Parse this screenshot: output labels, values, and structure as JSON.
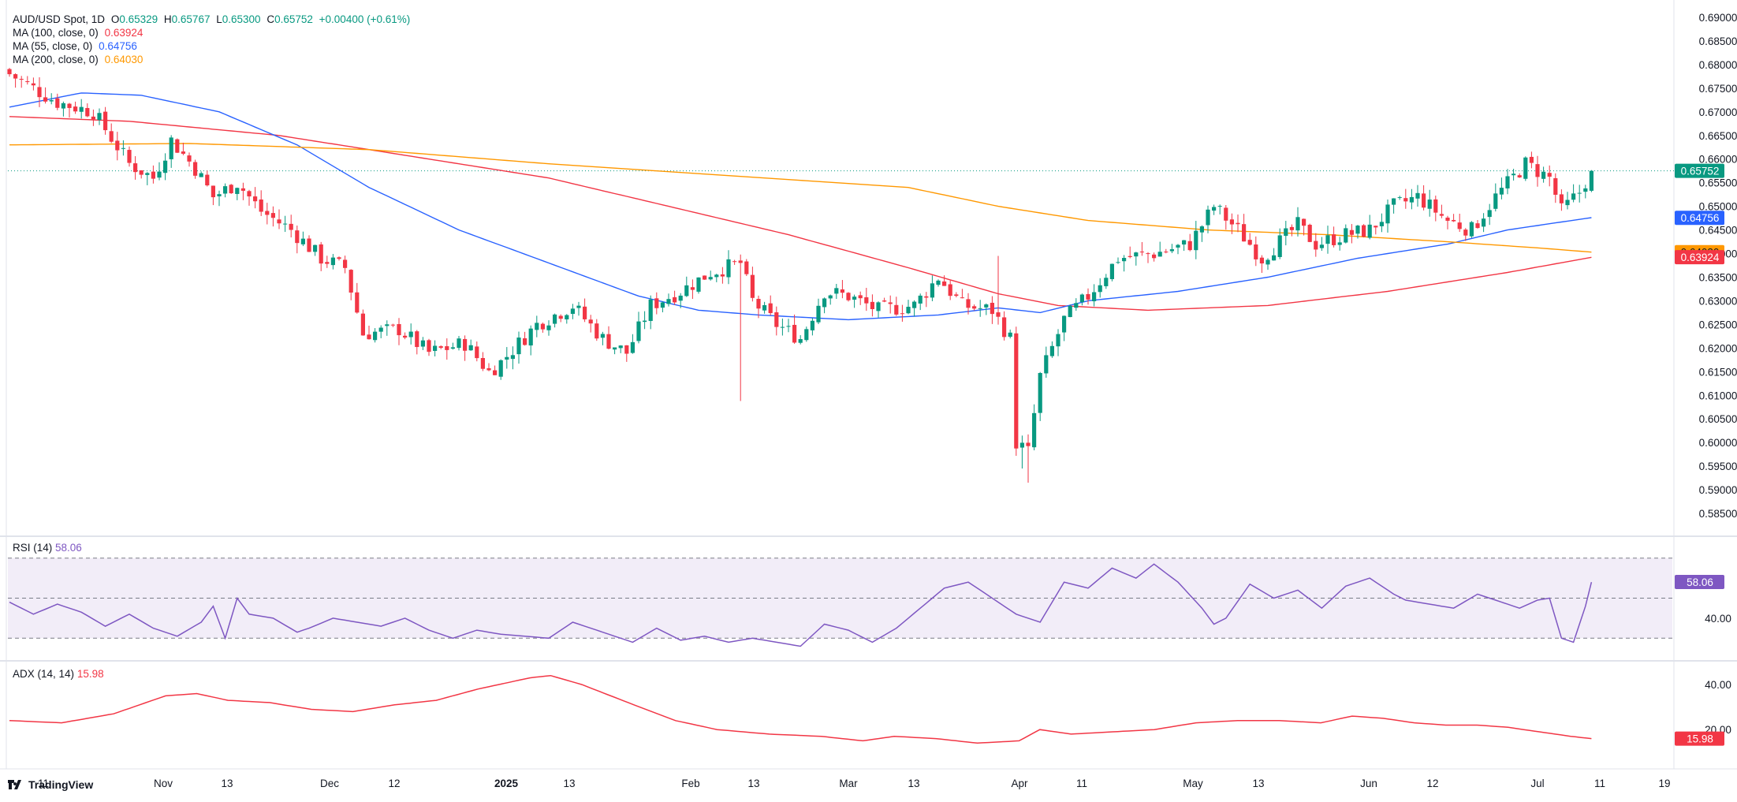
{
  "header": {
    "symbol": "AUD/USD Spot, 1D",
    "o_label": "O",
    "o_value": "0.65329",
    "h_label": "H",
    "h_value": "0.65767",
    "l_label": "L",
    "l_value": "0.65300",
    "c_label": "C",
    "c_value": "0.65752",
    "change": "+0.00400 (+0.61%)"
  },
  "indicators": {
    "ma100": {
      "label": "MA (100, close, 0)",
      "value": "0.63924",
      "color": "#f23645"
    },
    "ma55": {
      "label": "MA (55, close, 0)",
      "value": "0.64756",
      "color": "#2962ff"
    },
    "ma200": {
      "label": "MA (200, close, 0)",
      "value": "0.64030",
      "color": "#ff9800"
    },
    "rsi": {
      "label": "RSI (14)",
      "value": "58.06",
      "color": "#7e57c2"
    },
    "adx": {
      "label": "ADX (14, 14)",
      "value": "15.98",
      "color": "#f23645"
    }
  },
  "price_tag": {
    "value": "0.65752",
    "color": "#089981"
  },
  "branding": {
    "name": "TradingView"
  },
  "colors": {
    "up": "#089981",
    "down": "#f23645",
    "rsi_band": "#ede7f6"
  },
  "chart_data": [
    {
      "type": "candlestick",
      "title": "AUD/USD Spot, 1D",
      "ylim": [
        0.583,
        0.69
      ],
      "y_ticks": [
        "0.69000",
        "0.68500",
        "0.68000",
        "0.67500",
        "0.67000",
        "0.66500",
        "0.66000",
        "0.65500",
        "0.65000",
        "0.64500",
        "0.64000",
        "0.63500",
        "0.63000",
        "0.62500",
        "0.62000",
        "0.61500",
        "0.61000",
        "0.60500",
        "0.60000",
        "0.59500",
        "0.59000",
        "0.58500"
      ],
      "x_ticks": [
        "11",
        "Nov",
        "13",
        "Dec",
        "12",
        "2025",
        "13",
        "Feb",
        "13",
        "Mar",
        "13",
        "Apr",
        "11",
        "May",
        "13",
        "Jun",
        "12",
        "Jul",
        "11",
        "19"
      ],
      "x_ticks_bold": [
        "2025"
      ],
      "anchors": [
        [
          0,
          0.678
        ],
        [
          8,
          0.672
        ],
        [
          14,
          0.67
        ],
        [
          20,
          0.659
        ],
        [
          24,
          0.656
        ],
        [
          27,
          0.664
        ],
        [
          31,
          0.658
        ],
        [
          34,
          0.652
        ],
        [
          38,
          0.655
        ],
        [
          42,
          0.649
        ],
        [
          47,
          0.645
        ],
        [
          52,
          0.639
        ],
        [
          56,
          0.637
        ],
        [
          59,
          0.623
        ],
        [
          65,
          0.624
        ],
        [
          70,
          0.619
        ],
        [
          76,
          0.621
        ],
        [
          80,
          0.615
        ],
        [
          82,
          0.617
        ],
        [
          88,
          0.625
        ],
        [
          94,
          0.629
        ],
        [
          99,
          0.622
        ],
        [
          103,
          0.619
        ],
        [
          107,
          0.629
        ],
        [
          112,
          0.632
        ],
        [
          117,
          0.636
        ],
        [
          122,
          0.638
        ],
        [
          124,
          0.63
        ],
        [
          128,
          0.625
        ],
        [
          132,
          0.622
        ],
        [
          136,
          0.632
        ],
        [
          140,
          0.631
        ],
        [
          145,
          0.628
        ],
        [
          151,
          0.629
        ],
        [
          155,
          0.635
        ],
        [
          159,
          0.629
        ],
        [
          164,
          0.628
        ],
        [
          167,
          0.622
        ],
        [
          168,
          0.6
        ],
        [
          170,
          0.598
        ],
        [
          172,
          0.614
        ],
        [
          176,
          0.626
        ],
        [
          180,
          0.631
        ],
        [
          185,
          0.639
        ],
        [
          191,
          0.64
        ],
        [
          197,
          0.642
        ],
        [
          201,
          0.65
        ],
        [
          205,
          0.645
        ],
        [
          209,
          0.639
        ],
        [
          215,
          0.646
        ],
        [
          218,
          0.642
        ],
        [
          223,
          0.644
        ],
        [
          227,
          0.645
        ],
        [
          231,
          0.65
        ],
        [
          235,
          0.652
        ],
        [
          240,
          0.647
        ],
        [
          244,
          0.645
        ],
        [
          248,
          0.652
        ],
        [
          253,
          0.659
        ],
        [
          257,
          0.656
        ],
        [
          259,
          0.649
        ],
        [
          262,
          0.653
        ],
        [
          264,
          0.6575
        ]
      ],
      "series": [
        {
          "name": "MA (100, close, 0)",
          "points": [
            [
              0,
              0.669
            ],
            [
              20,
              0.668
            ],
            [
              45,
              0.665
            ],
            [
              65,
              0.661
            ],
            [
              90,
              0.656
            ],
            [
              110,
              0.65
            ],
            [
              130,
              0.644
            ],
            [
              150,
              0.637
            ],
            [
              165,
              0.6315
            ],
            [
              175,
              0.629
            ],
            [
              190,
              0.628
            ],
            [
              210,
              0.629
            ],
            [
              230,
              0.632
            ],
            [
              250,
              0.636
            ],
            [
              264,
              0.6392
            ]
          ]
        },
        {
          "name": "MA (55, close, 0)",
          "points": [
            [
              0,
              0.671
            ],
            [
              12,
              0.674
            ],
            [
              22,
              0.6735
            ],
            [
              35,
              0.67
            ],
            [
              48,
              0.663
            ],
            [
              60,
              0.654
            ],
            [
              75,
              0.645
            ],
            [
              90,
              0.638
            ],
            [
              105,
              0.631
            ],
            [
              115,
              0.628
            ],
            [
              125,
              0.627
            ],
            [
              140,
              0.626
            ],
            [
              155,
              0.627
            ],
            [
              165,
              0.6285
            ],
            [
              172,
              0.6275
            ],
            [
              180,
              0.63
            ],
            [
              195,
              0.632
            ],
            [
              210,
              0.635
            ],
            [
              225,
              0.639
            ],
            [
              240,
              0.642
            ],
            [
              250,
              0.645
            ],
            [
              258,
              0.6465
            ],
            [
              264,
              0.6476
            ]
          ]
        },
        {
          "name": "MA (200, close, 0)",
          "points": [
            [
              0,
              0.663
            ],
            [
              30,
              0.6633
            ],
            [
              60,
              0.662
            ],
            [
              90,
              0.659
            ],
            [
              120,
              0.6565
            ],
            [
              150,
              0.654
            ],
            [
              165,
              0.65
            ],
            [
              180,
              0.647
            ],
            [
              200,
              0.645
            ],
            [
              220,
              0.644
            ],
            [
              240,
              0.6425
            ],
            [
              255,
              0.6412
            ],
            [
              264,
              0.6403
            ]
          ]
        }
      ]
    },
    {
      "type": "line",
      "title": "RSI (14)",
      "ylim": [
        25,
        75
      ],
      "y_ticks": [
        "40.00"
      ],
      "bands": [
        30,
        50,
        70
      ],
      "series": [
        {
          "name": "RSI (14)",
          "points": [
            [
              0,
              48
            ],
            [
              4,
              42
            ],
            [
              8,
              47
            ],
            [
              12,
              43
            ],
            [
              16,
              36
            ],
            [
              20,
              42
            ],
            [
              24,
              35
            ],
            [
              28,
              31
            ],
            [
              32,
              38
            ],
            [
              34,
              46
            ],
            [
              36,
              30
            ],
            [
              38,
              50
            ],
            [
              40,
              42
            ],
            [
              44,
              40
            ],
            [
              48,
              33
            ],
            [
              50,
              35
            ],
            [
              54,
              40
            ],
            [
              58,
              38
            ],
            [
              62,
              36
            ],
            [
              66,
              40
            ],
            [
              70,
              34
            ],
            [
              74,
              30
            ],
            [
              78,
              34
            ],
            [
              82,
              32
            ],
            [
              86,
              31
            ],
            [
              90,
              30
            ],
            [
              94,
              38
            ],
            [
              98,
              34
            ],
            [
              102,
              30
            ],
            [
              104,
              28
            ],
            [
              108,
              35
            ],
            [
              112,
              29
            ],
            [
              116,
              31
            ],
            [
              120,
              28
            ],
            [
              124,
              30
            ],
            [
              128,
              28
            ],
            [
              132,
              26
            ],
            [
              136,
              37
            ],
            [
              140,
              34
            ],
            [
              144,
              28
            ],
            [
              148,
              35
            ],
            [
              152,
              45
            ],
            [
              156,
              55
            ],
            [
              160,
              58
            ],
            [
              164,
              50
            ],
            [
              168,
              42
            ],
            [
              172,
              38
            ],
            [
              176,
              58
            ],
            [
              180,
              55
            ],
            [
              184,
              65
            ],
            [
              188,
              60
            ],
            [
              191,
              67
            ],
            [
              195,
              58
            ],
            [
              199,
              45
            ],
            [
              201,
              37
            ],
            [
              203,
              40
            ],
            [
              207,
              57
            ],
            [
              211,
              50
            ],
            [
              215,
              54
            ],
            [
              219,
              45
            ],
            [
              223,
              56
            ],
            [
              227,
              60
            ],
            [
              231,
              52
            ],
            [
              233,
              49
            ],
            [
              237,
              47
            ],
            [
              241,
              45
            ],
            [
              245,
              52
            ],
            [
              249,
              48
            ],
            [
              252,
              45
            ],
            [
              255,
              49
            ],
            [
              257,
              50
            ],
            [
              259,
              30
            ],
            [
              261,
              28
            ],
            [
              263,
              46
            ],
            [
              264,
              58
            ]
          ]
        }
      ]
    },
    {
      "type": "line",
      "title": "ADX (14, 14)",
      "ylim": [
        12,
        46
      ],
      "y_ticks": [
        "40.00",
        "20.00"
      ],
      "series": [
        {
          "name": "ADX (14, 14)",
          "points": [
            [
              0,
              24
            ],
            [
              10,
              23
            ],
            [
              20,
              27
            ],
            [
              30,
              35
            ],
            [
              36,
              36
            ],
            [
              42,
              33
            ],
            [
              50,
              32
            ],
            [
              58,
              29
            ],
            [
              66,
              28
            ],
            [
              74,
              31
            ],
            [
              82,
              33
            ],
            [
              90,
              38
            ],
            [
              100,
              43
            ],
            [
              104,
              44
            ],
            [
              110,
              40
            ],
            [
              120,
              31
            ],
            [
              128,
              24
            ],
            [
              136,
              20
            ],
            [
              146,
              18
            ],
            [
              156,
              17
            ],
            [
              164,
              15
            ],
            [
              170,
              17
            ],
            [
              178,
              16
            ],
            [
              186,
              14
            ],
            [
              194,
              15
            ],
            [
              198,
              20
            ],
            [
              204,
              18
            ],
            [
              212,
              19
            ],
            [
              220,
              20
            ],
            [
              228,
              23
            ],
            [
              236,
              24
            ],
            [
              244,
              24
            ],
            [
              252,
              23
            ],
            [
              258,
              26
            ],
            [
              264,
              25
            ],
            [
              270,
              23
            ],
            [
              276,
              22
            ],
            [
              282,
              22
            ],
            [
              288,
              21
            ],
            [
              294,
              19
            ],
            [
              300,
              17
            ],
            [
              304,
              16
            ]
          ]
        }
      ]
    }
  ]
}
